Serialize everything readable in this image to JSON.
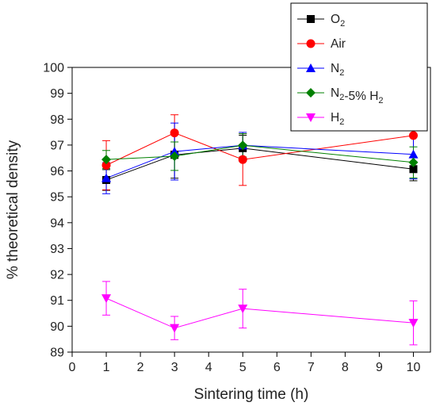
{
  "chart_data": {
    "type": "scatter",
    "title": "",
    "xlabel": "Sintering time (h)",
    "ylabel": "% theoretical density",
    "xlim": [
      0,
      10.5
    ],
    "ylim": [
      89,
      100
    ],
    "xticks": [
      0,
      1,
      2,
      3,
      4,
      5,
      6,
      7,
      8,
      9,
      10
    ],
    "yticks": [
      89,
      90,
      91,
      92,
      93,
      94,
      95,
      96,
      97,
      98,
      99,
      100
    ],
    "grid": false,
    "legend_position": "top-right",
    "x": [
      1,
      3,
      5,
      10
    ],
    "series": [
      {
        "name_parts": [
          {
            "t": "O"
          },
          {
            "t": "2",
            "sub": true
          }
        ],
        "color": "#000000",
        "marker": "square",
        "values": [
          95.65,
          96.62,
          96.88,
          96.07
        ],
        "errors": [
          0.4,
          0.9,
          0.5,
          0.45
        ]
      },
      {
        "name_parts": [
          {
            "t": "Air"
          }
        ],
        "color": "#ff0000",
        "marker": "circle",
        "values": [
          96.22,
          97.47,
          96.44,
          97.37
        ],
        "errors": [
          0.95,
          0.7,
          1.0,
          1.05
        ]
      },
      {
        "name_parts": [
          {
            "t": "N"
          },
          {
            "t": "2",
            "sub": true
          }
        ],
        "color": "#0000ff",
        "marker": "triangle-up",
        "values": [
          95.72,
          96.75,
          96.99,
          96.64
        ],
        "errors": [
          0.6,
          1.1,
          0.5,
          0.95
        ]
      },
      {
        "name_parts": [
          {
            "t": "N"
          },
          {
            "t": "2",
            "sub": true
          },
          {
            "t": "-5% H"
          },
          {
            "t": "2",
            "sub": true
          }
        ],
        "color": "#008000",
        "marker": "diamond",
        "values": [
          96.44,
          96.57,
          96.99,
          96.33
        ],
        "errors": [
          0.35,
          0.55,
          0.45,
          0.6
        ]
      },
      {
        "name_parts": [
          {
            "t": "H"
          },
          {
            "t": "2",
            "sub": true
          }
        ],
        "color": "#ff00ff",
        "marker": "triangle-down",
        "values": [
          91.08,
          89.93,
          90.68,
          90.13
        ],
        "errors": [
          0.65,
          0.45,
          0.75,
          0.85
        ]
      }
    ]
  }
}
